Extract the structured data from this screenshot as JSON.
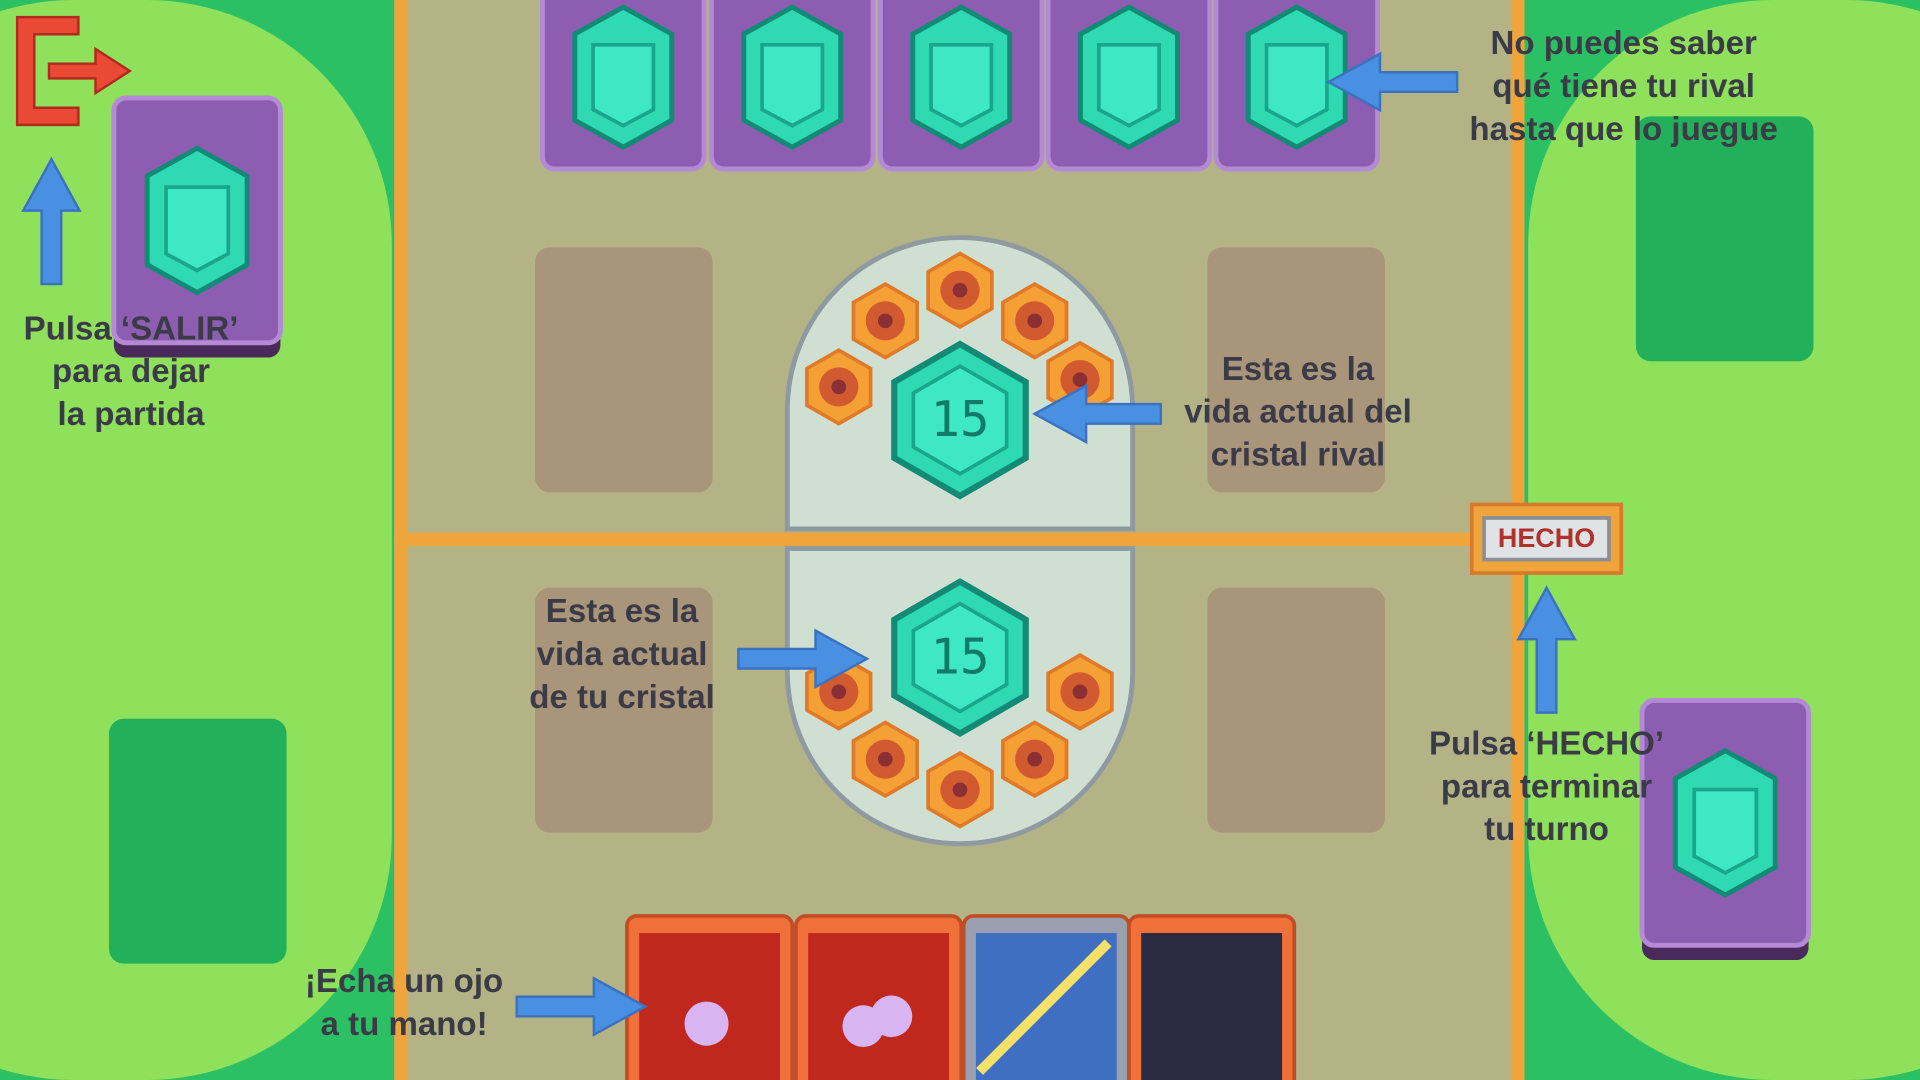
{
  "annotations": {
    "exit": [
      "Pulsa ‘SALIR’",
      "para dejar",
      "la partida"
    ],
    "rival_hand": [
      "No puedes saber",
      "qué tiene tu rival",
      "hasta que lo juegue"
    ],
    "rival_life": [
      "Esta es la",
      "vida actual del",
      "cristal rival"
    ],
    "own_life": [
      "Esta es la",
      "vida actual",
      "de tu cristal"
    ],
    "done": [
      "Pulsa ‘HECHO’",
      "para terminar",
      "tu turno"
    ],
    "hand": [
      "¡Echa un ojo",
      "a tu mano!"
    ]
  },
  "done_button": {
    "label": "HECHO"
  },
  "rival_crystal": {
    "health": 15
  },
  "player_crystal": {
    "health": 15
  }
}
